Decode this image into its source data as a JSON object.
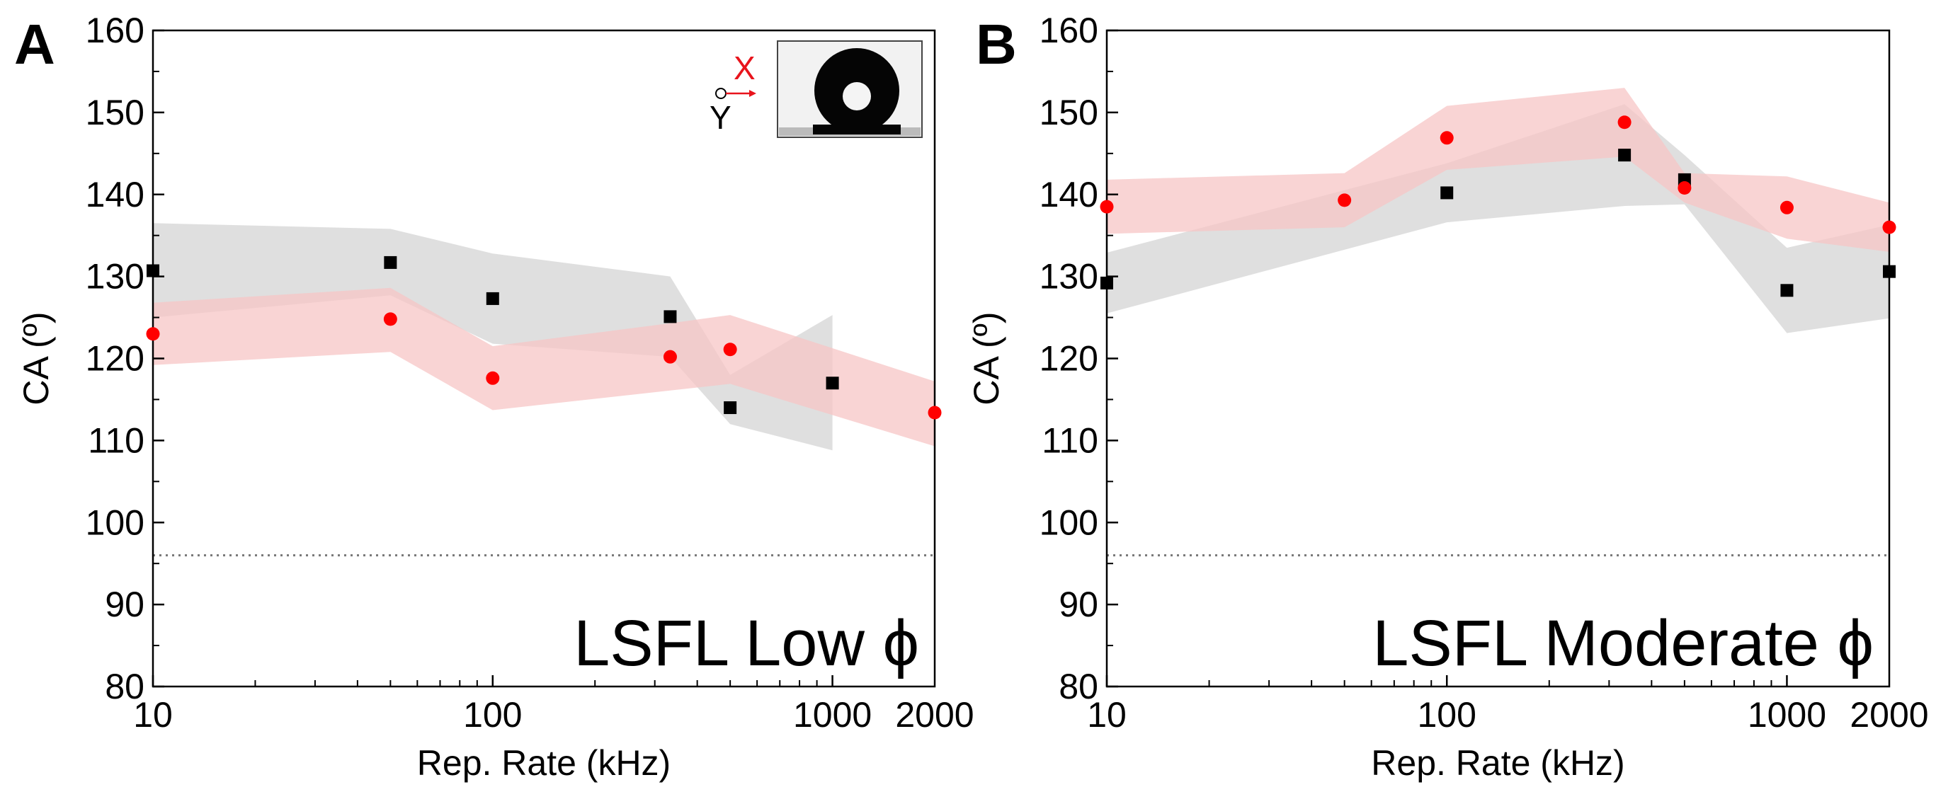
{
  "colors": {
    "band_black": "#d9d9d9",
    "band_red": "#f7c6c6",
    "marker_black": "#000000",
    "marker_red": "#ff0000",
    "baseline": "#777777"
  },
  "chart_data": [
    {
      "type": "scatter",
      "panel_label": "A",
      "annotation": "LSFL Low ϕ",
      "xlabel": "Rep. Rate (kHz)",
      "ylabel": "CA (º)",
      "xscale": "log",
      "xlim": [
        10,
        2000
      ],
      "ylim": [
        80,
        160
      ],
      "x_ticks": [
        10,
        100,
        1000,
        2000
      ],
      "y_ticks": [
        80,
        90,
        100,
        110,
        120,
        130,
        140,
        150,
        160
      ],
      "reference_line_y": 96,
      "inset": {
        "x_axis_label": "X",
        "y_axis_label": "Y",
        "icon": "water-droplet-image"
      },
      "series": [
        {
          "marker": "square",
          "color": "black",
          "x": [
            10,
            50,
            100,
            333,
            500,
            1000
          ],
          "y": [
            130.7,
            131.7,
            127.3,
            125.1,
            114.0,
            117.0
          ],
          "band_x": [
            10,
            50,
            100,
            333,
            500,
            1000
          ],
          "band_upper": [
            136.5,
            135.8,
            132.8,
            130.0,
            118.0,
            125.3
          ],
          "band_lower": [
            125.0,
            127.7,
            121.8,
            120.2,
            112.0,
            108.8
          ]
        },
        {
          "marker": "circle",
          "color": "red",
          "x": [
            10,
            50,
            100,
            333,
            500,
            2000
          ],
          "y": [
            123.0,
            124.8,
            117.6,
            120.2,
            121.1,
            113.4
          ],
          "band_x": [
            10,
            50,
            100,
            333,
            500,
            2000
          ],
          "band_upper": [
            126.8,
            128.6,
            121.5,
            124.3,
            125.3,
            117.2
          ],
          "band_lower": [
            119.2,
            120.8,
            113.7,
            116.1,
            116.9,
            109.3
          ]
        }
      ]
    },
    {
      "type": "scatter",
      "panel_label": "B",
      "annotation": "LSFL Moderate ϕ",
      "xlabel": "Rep. Rate (kHz)",
      "ylabel": "CA (º)",
      "xscale": "log",
      "xlim": [
        10,
        2000
      ],
      "ylim": [
        80,
        160
      ],
      "x_ticks": [
        10,
        100,
        1000,
        2000
      ],
      "y_ticks": [
        80,
        90,
        100,
        110,
        120,
        130,
        140,
        150,
        160
      ],
      "reference_line_y": 96,
      "series": [
        {
          "marker": "square",
          "color": "black",
          "x": [
            10,
            100,
            333,
            500,
            1000,
            2000
          ],
          "y": [
            129.2,
            140.2,
            144.8,
            141.8,
            128.3,
            130.6
          ],
          "band_x": [
            10,
            100,
            333,
            500,
            1000,
            2000
          ],
          "band_upper": [
            132.9,
            143.8,
            151.0,
            144.8,
            133.5,
            136.3
          ],
          "band_lower": [
            125.5,
            136.6,
            138.6,
            138.8,
            123.1,
            124.9
          ]
        },
        {
          "marker": "circle",
          "color": "red",
          "x": [
            10,
            50,
            100,
            333,
            500,
            1000,
            2000
          ],
          "y": [
            138.5,
            139.3,
            146.9,
            148.8,
            140.8,
            138.4,
            136.0
          ],
          "band_x": [
            10,
            50,
            100,
            333,
            500,
            1000,
            2000
          ],
          "band_upper": [
            141.8,
            142.6,
            150.8,
            153.0,
            142.6,
            142.2,
            139.0
          ],
          "band_lower": [
            135.2,
            136.0,
            143.0,
            144.6,
            139.0,
            134.6,
            133.0
          ]
        }
      ]
    }
  ]
}
